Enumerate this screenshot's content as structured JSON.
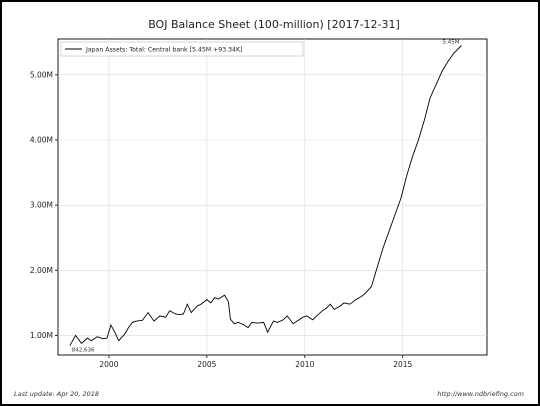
{
  "chart_data": {
    "type": "line",
    "title": "BOJ Balance Sheet (100-million) [2017-12-31]",
    "xlabel": "",
    "ylabel": "",
    "xlim": [
      1997.4,
      2019.3
    ],
    "ylim": [
      0.7,
      5.55
    ],
    "xticks": [
      2000,
      2005,
      2010,
      2015
    ],
    "xtick_labels": [
      "2000",
      "2005",
      "2010",
      "2015"
    ],
    "yticks": [
      1.0,
      2.0,
      3.0,
      4.0,
      5.0
    ],
    "ytick_labels": [
      "1.00M",
      "2.00M",
      "3.00M",
      "4.00M",
      "5.00M"
    ],
    "grid": true,
    "legend": "top-left",
    "series": [
      {
        "name": "Japan Assets: Total: Central bank [5.45M +93.34K]",
        "color": "#000000",
        "x": [
          1998.0,
          1998.3,
          1998.6,
          1998.9,
          1999.1,
          1999.4,
          1999.7,
          1999.9,
          2000.1,
          2000.3,
          2000.5,
          2000.8,
          2001.0,
          2001.2,
          2001.4,
          2001.7,
          2002.0,
          2002.3,
          2002.6,
          2002.9,
          2003.1,
          2003.4,
          2003.6,
          2003.8,
          2004.0,
          2004.2,
          2004.5,
          2004.7,
          2005.0,
          2005.2,
          2005.4,
          2005.6,
          2005.9,
          2006.1,
          2006.2,
          2006.4,
          2006.6,
          2006.9,
          2007.1,
          2007.3,
          2007.6,
          2007.9,
          2008.1,
          2008.4,
          2008.6,
          2008.9,
          2009.1,
          2009.4,
          2009.6,
          2009.9,
          2010.1,
          2010.4,
          2010.6,
          2010.9,
          2011.1,
          2011.3,
          2011.5,
          2011.8,
          2012.0,
          2012.3,
          2012.6,
          2012.9,
          2013.1,
          2013.4,
          2013.7,
          2014.0,
          2014.3,
          2014.6,
          2014.9,
          2015.2,
          2015.5,
          2015.8,
          2016.1,
          2016.4,
          2016.7,
          2017.0,
          2017.3,
          2017.6,
          2018.0
        ],
        "values": [
          0.842,
          1.0,
          0.88,
          0.96,
          0.92,
          0.98,
          0.95,
          0.96,
          1.16,
          1.05,
          0.92,
          1.02,
          1.12,
          1.2,
          1.22,
          1.23,
          1.35,
          1.22,
          1.3,
          1.28,
          1.38,
          1.33,
          1.32,
          1.33,
          1.48,
          1.35,
          1.45,
          1.48,
          1.55,
          1.5,
          1.58,
          1.56,
          1.62,
          1.52,
          1.25,
          1.18,
          1.2,
          1.16,
          1.12,
          1.2,
          1.19,
          1.2,
          1.05,
          1.22,
          1.2,
          1.24,
          1.3,
          1.18,
          1.22,
          1.28,
          1.3,
          1.24,
          1.3,
          1.38,
          1.42,
          1.48,
          1.4,
          1.45,
          1.5,
          1.48,
          1.55,
          1.6,
          1.65,
          1.75,
          2.05,
          2.35,
          2.6,
          2.85,
          3.1,
          3.45,
          3.75,
          4.0,
          4.3,
          4.65,
          4.85,
          5.05,
          5.2,
          5.33,
          5.45
        ]
      }
    ],
    "annotations": [
      {
        "label": "842,636",
        "x": 1998.0,
        "y": 0.842
      },
      {
        "label": "5.45M",
        "x": 2018.0,
        "y": 5.45
      }
    ]
  },
  "footer": {
    "last_update": "Last update: Apr 20, 2018",
    "source": "http://www.ndbriefing.com"
  }
}
